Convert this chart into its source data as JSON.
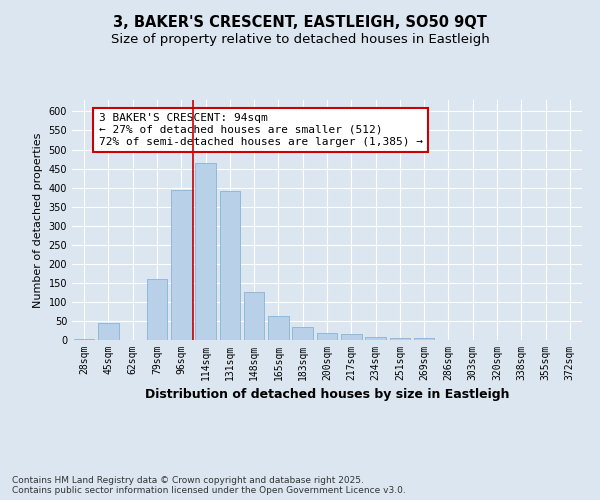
{
  "title1": "3, BAKER'S CRESCENT, EASTLEIGH, SO50 9QT",
  "title2": "Size of property relative to detached houses in Eastleigh",
  "xlabel": "Distribution of detached houses by size in Eastleigh",
  "ylabel": "Number of detached properties",
  "categories": [
    "28sqm",
    "45sqm",
    "62sqm",
    "79sqm",
    "96sqm",
    "114sqm",
    "131sqm",
    "148sqm",
    "165sqm",
    "183sqm",
    "200sqm",
    "217sqm",
    "234sqm",
    "251sqm",
    "269sqm",
    "286sqm",
    "303sqm",
    "320sqm",
    "338sqm",
    "355sqm",
    "372sqm"
  ],
  "values": [
    2,
    44,
    0,
    160,
    395,
    465,
    390,
    125,
    63,
    35,
    18,
    15,
    8,
    5,
    5,
    1,
    1,
    0,
    0,
    0,
    1
  ],
  "bar_color": "#b8d0e8",
  "bar_edge_color": "#7aacd0",
  "vline_x_index": 4.5,
  "vline_color": "#cc0000",
  "annotation_text": "3 BAKER'S CRESCENT: 94sqm\n← 27% of detached houses are smaller (512)\n72% of semi-detached houses are larger (1,385) →",
  "annotation_box_facecolor": "#ffffff",
  "annotation_box_edgecolor": "#cc0000",
  "ylim": [
    0,
    630
  ],
  "yticks": [
    0,
    50,
    100,
    150,
    200,
    250,
    300,
    350,
    400,
    450,
    500,
    550,
    600
  ],
  "bg_color": "#dce6f0",
  "plot_bg_color": "#dce6f0",
  "footer": "Contains HM Land Registry data © Crown copyright and database right 2025.\nContains public sector information licensed under the Open Government Licence v3.0.",
  "title_fontsize": 10.5,
  "subtitle_fontsize": 9.5,
  "xlabel_fontsize": 9,
  "ylabel_fontsize": 8,
  "tick_fontsize": 7,
  "annotation_fontsize": 8,
  "footer_fontsize": 6.5
}
